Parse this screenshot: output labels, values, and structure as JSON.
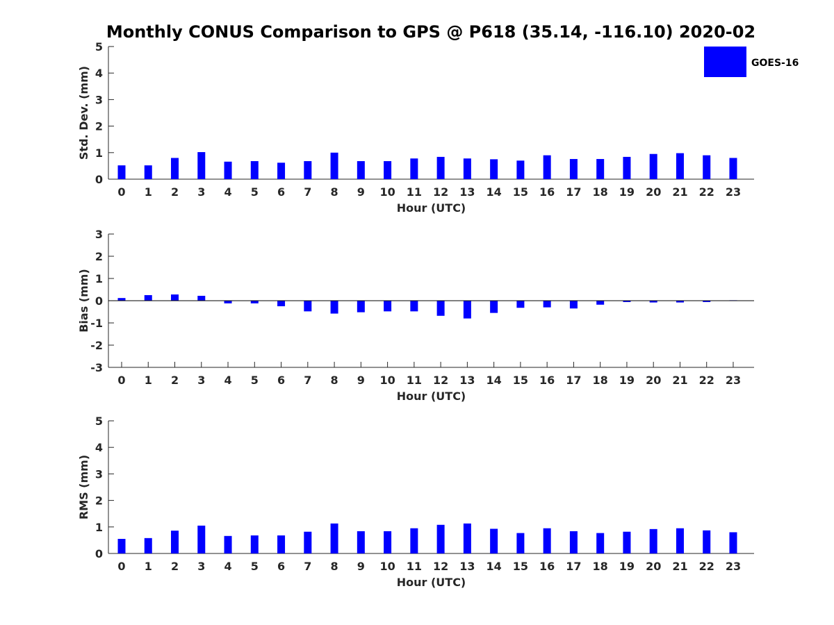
{
  "title": "Monthly CONUS Comparison to GPS @ P618 (35.14, -116.10) 2020-02",
  "legend": {
    "label": "GOES-16",
    "color": "#0000ff",
    "position": "top-right"
  },
  "chart_data": [
    {
      "type": "bar",
      "series": [
        {
          "name": "GOES-16",
          "values": [
            0.52,
            0.52,
            0.8,
            1.02,
            0.66,
            0.68,
            0.62,
            0.68,
            1.0,
            0.68,
            0.68,
            0.78,
            0.84,
            0.78,
            0.75,
            0.7,
            0.9,
            0.76,
            0.76,
            0.84,
            0.95,
            0.98,
            0.9,
            0.8
          ]
        }
      ],
      "categories": [
        "0",
        "1",
        "2",
        "3",
        "4",
        "5",
        "6",
        "7",
        "8",
        "9",
        "10",
        "11",
        "12",
        "13",
        "14",
        "15",
        "16",
        "17",
        "18",
        "19",
        "20",
        "21",
        "22",
        "23"
      ],
      "xlabel": "Hour (UTC)",
      "ylabel": "Std. Dev. (mm)",
      "ylim": [
        0,
        5
      ],
      "yticks": [
        "0",
        "1",
        "2",
        "3",
        "4",
        "5"
      ],
      "grid": false
    },
    {
      "type": "bar",
      "series": [
        {
          "name": "GOES-16",
          "values": [
            0.12,
            0.25,
            0.28,
            0.22,
            -0.12,
            -0.12,
            -0.25,
            -0.48,
            -0.58,
            -0.52,
            -0.48,
            -0.48,
            -0.68,
            -0.8,
            -0.55,
            -0.32,
            -0.3,
            -0.35,
            -0.18,
            -0.06,
            -0.08,
            -0.08,
            -0.06,
            0.02
          ]
        }
      ],
      "categories": [
        "0",
        "1",
        "2",
        "3",
        "4",
        "5",
        "6",
        "7",
        "8",
        "9",
        "10",
        "11",
        "12",
        "13",
        "14",
        "15",
        "16",
        "17",
        "18",
        "19",
        "20",
        "21",
        "22",
        "23"
      ],
      "xlabel": "Hour (UTC)",
      "ylabel": "Bias (mm)",
      "ylim": [
        -3,
        3
      ],
      "yticks": [
        "-3",
        "-2",
        "-1",
        "0",
        "1",
        "2",
        "3"
      ],
      "grid": false
    },
    {
      "type": "bar",
      "series": [
        {
          "name": "GOES-16",
          "values": [
            0.55,
            0.58,
            0.86,
            1.05,
            0.66,
            0.68,
            0.68,
            0.82,
            1.13,
            0.84,
            0.84,
            0.95,
            1.08,
            1.13,
            0.93,
            0.77,
            0.95,
            0.84,
            0.77,
            0.82,
            0.92,
            0.95,
            0.87,
            0.8
          ]
        }
      ],
      "categories": [
        "0",
        "1",
        "2",
        "3",
        "4",
        "5",
        "6",
        "7",
        "8",
        "9",
        "10",
        "11",
        "12",
        "13",
        "14",
        "15",
        "16",
        "17",
        "18",
        "19",
        "20",
        "21",
        "22",
        "23"
      ],
      "xlabel": "Hour (UTC)",
      "ylabel": "RMS (mm)",
      "ylim": [
        0,
        5
      ],
      "yticks": [
        "0",
        "1",
        "2",
        "3",
        "4",
        "5"
      ],
      "grid": false
    }
  ]
}
